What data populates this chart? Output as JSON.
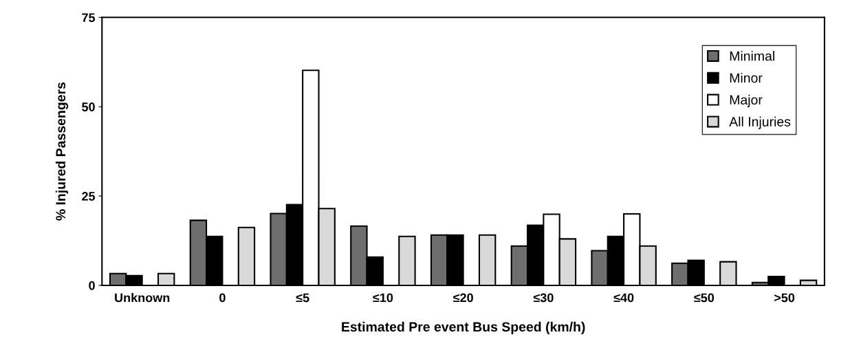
{
  "chart_data": {
    "type": "bar",
    "xlabel": "Estimated Pre event Bus Speed (km/h)",
    "ylabel": "% Injured Passengers",
    "categories": [
      "Unknown",
      "0",
      "≤5",
      "≤10",
      "≤20",
      "≤30",
      "≤40",
      "≤50",
      ">50"
    ],
    "series": [
      {
        "name": "Minimal",
        "color": "#6e6e6e",
        "values": [
          3.3,
          18.2,
          20.1,
          16.6,
          14.1,
          11.0,
          9.7,
          6.2,
          0.8
        ]
      },
      {
        "name": "Minor",
        "color": "#000000",
        "values": [
          2.7,
          13.7,
          22.6,
          7.9,
          14.1,
          16.8,
          13.7,
          7.0,
          2.5
        ]
      },
      {
        "name": "Major",
        "color": "#ffffff",
        "values": [
          null,
          null,
          60.2,
          null,
          null,
          19.9,
          20.0,
          null,
          null
        ]
      },
      {
        "name": "All Injuries",
        "color": "#d9d9d9",
        "values": [
          3.3,
          16.2,
          21.5,
          13.7,
          14.1,
          13.0,
          11.0,
          6.6,
          1.4
        ]
      }
    ],
    "ylim": [
      0,
      75
    ],
    "yticks": [
      0,
      25,
      50,
      75
    ],
    "legend": "top right",
    "grid": false
  }
}
